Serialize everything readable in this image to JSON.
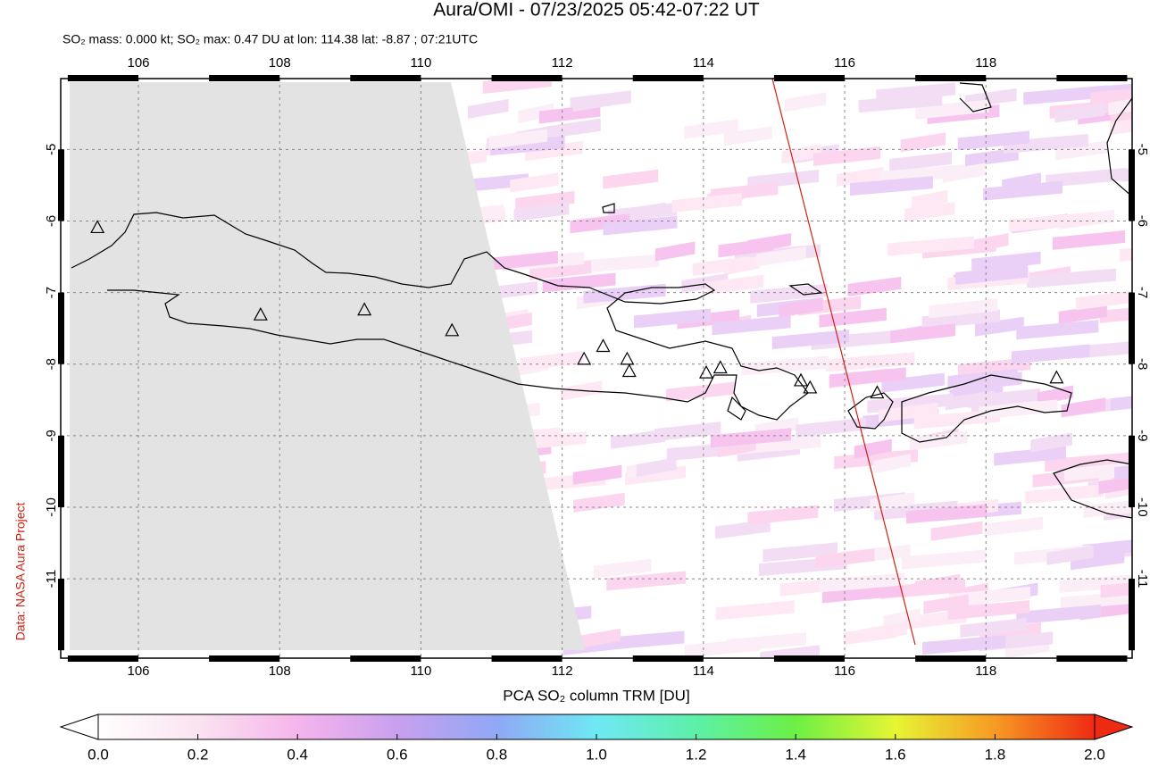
{
  "map": {
    "title": "Aura/OMI - 07/23/2025 05:42-07:22 UT",
    "subtitle": "SO₂ mass: 0.000 kt; SO₂ max: 0.47 DU at lon: 114.38 lat: -8.87 ; 07:21UTC",
    "credit": "Data: NASA Aura Project",
    "xlim": [
      104.9,
      120.07
    ],
    "ylim": [
      -12.11,
      -4.01
    ],
    "xticks": [
      106,
      108,
      110,
      112,
      114,
      116,
      118
    ],
    "yticks": [
      -5,
      -6,
      -7,
      -8,
      -9,
      -10,
      -11
    ],
    "grid": true,
    "volcanoes": {
      "lon": [
        105.42,
        107.73,
        109.2,
        110.44,
        112.31,
        112.58,
        112.92,
        112.95,
        114.04,
        114.24,
        115.38,
        115.51,
        116.46,
        119.0
      ],
      "lat": [
        -6.1,
        -7.32,
        -7.25,
        -7.54,
        -7.94,
        -7.76,
        -7.94,
        -8.11,
        -8.13,
        -8.06,
        -8.24,
        -8.34,
        -8.41,
        -8.2
      ]
    },
    "colorbar": {
      "label": "PCA SO₂ column TRM [DU]",
      "lim": [
        0,
        2
      ],
      "ticks": [
        {
          "value": 0,
          "label": "0.0"
        },
        {
          "value": 0.2,
          "label": "0.2"
        },
        {
          "value": 0.4,
          "label": "0.4"
        },
        {
          "value": 0.6,
          "label": "0.6"
        },
        {
          "value": 0.8,
          "label": "0.8"
        },
        {
          "value": 1,
          "label": "1.0"
        },
        {
          "value": 1.2,
          "label": "1.2"
        },
        {
          "value": 1.4,
          "label": "1.4"
        },
        {
          "value": 1.6,
          "label": "1.6"
        },
        {
          "value": 1.8,
          "label": "1.8"
        },
        {
          "value": 2,
          "label": "2.0"
        }
      ]
    }
  }
}
